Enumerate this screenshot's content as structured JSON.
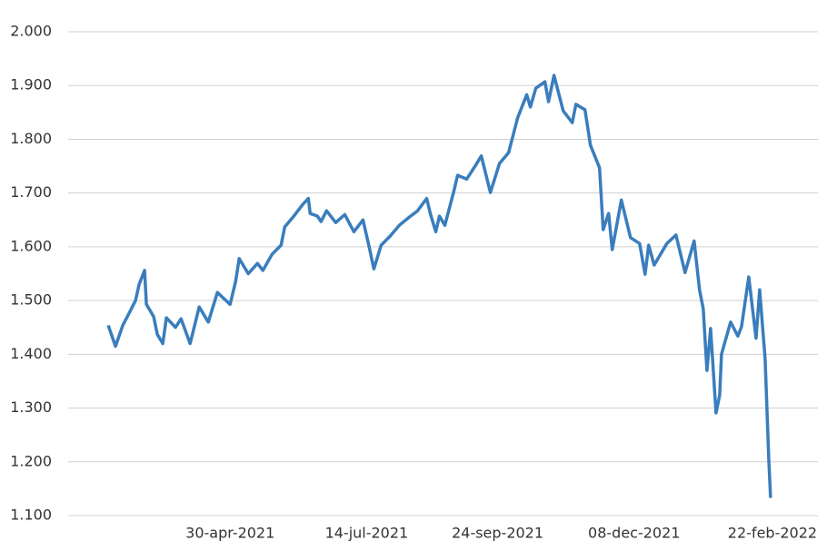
{
  "chart_data": {
    "type": "line",
    "x": [
      "2021-02-22",
      "2021-02-26",
      "2021-03-02",
      "2021-03-06",
      "2021-03-09",
      "2021-03-11",
      "2021-03-14",
      "2021-03-15",
      "2021-03-19",
      "2021-03-21",
      "2021-03-24",
      "2021-03-26",
      "2021-03-31",
      "2021-04-03",
      "2021-04-08",
      "2021-04-13",
      "2021-04-18",
      "2021-04-23",
      "2021-04-30",
      "2021-05-03",
      "2021-05-05",
      "2021-05-10",
      "2021-05-15",
      "2021-05-18",
      "2021-05-23",
      "2021-05-28",
      "2021-05-30",
      "2021-06-04",
      "2021-06-09",
      "2021-06-12",
      "2021-06-13",
      "2021-06-17",
      "2021-06-19",
      "2021-06-22",
      "2021-06-27",
      "2021-07-02",
      "2021-07-07",
      "2021-07-12",
      "2021-07-15",
      "2021-07-18",
      "2021-07-22",
      "2021-07-27",
      "2021-08-01",
      "2021-08-06",
      "2021-08-11",
      "2021-08-16",
      "2021-08-18",
      "2021-08-21",
      "2021-08-23",
      "2021-08-26",
      "2021-08-31",
      "2021-09-02",
      "2021-09-07",
      "2021-09-12",
      "2021-09-15",
      "2021-09-20",
      "2021-09-25",
      "2021-09-30",
      "2021-10-05",
      "2021-10-10",
      "2021-10-12",
      "2021-10-15",
      "2021-10-20",
      "2021-10-22",
      "2021-10-25",
      "2021-10-30",
      "2021-11-04",
      "2021-11-06",
      "2021-11-11",
      "2021-11-14",
      "2021-11-19",
      "2021-11-21",
      "2021-11-24",
      "2021-11-26",
      "2021-12-01",
      "2021-12-06",
      "2021-12-11",
      "2021-12-14",
      "2021-12-16",
      "2021-12-19",
      "2021-12-26",
      "2021-12-31",
      "2022-01-05",
      "2022-01-10",
      "2022-01-13",
      "2022-01-15",
      "2022-01-17",
      "2022-01-19",
      "2022-01-22",
      "2022-01-24",
      "2022-01-25",
      "2022-01-30",
      "2022-02-03",
      "2022-02-05",
      "2022-02-09",
      "2022-02-13",
      "2022-02-15",
      "2022-02-18",
      "2022-02-20",
      "2022-02-21"
    ],
    "series": [
      {
        "color": "#3a7dbd",
        "values": [
          1.454,
          1.415,
          1.454,
          1.48,
          1.5,
          1.53,
          1.556,
          1.493,
          1.47,
          1.437,
          1.42,
          1.468,
          1.45,
          1.466,
          1.42,
          1.488,
          1.46,
          1.515,
          1.493,
          1.535,
          1.578,
          1.55,
          1.569,
          1.556,
          1.586,
          1.603,
          1.637,
          1.657,
          1.679,
          1.69,
          1.662,
          1.657,
          1.647,
          1.667,
          1.645,
          1.66,
          1.628,
          1.65,
          1.606,
          1.559,
          1.603,
          1.62,
          1.64,
          1.654,
          1.667,
          1.69,
          1.662,
          1.628,
          1.657,
          1.64,
          1.704,
          1.733,
          1.726,
          1.752,
          1.769,
          1.701,
          1.755,
          1.775,
          1.84,
          1.883,
          1.86,
          1.895,
          1.907,
          1.87,
          1.919,
          1.853,
          1.831,
          1.865,
          1.855,
          1.789,
          1.747,
          1.632,
          1.662,
          1.595,
          1.687,
          1.617,
          1.606,
          1.549,
          1.603,
          1.566,
          1.606,
          1.622,
          1.552,
          1.611,
          1.519,
          1.485,
          1.37,
          1.448,
          1.291,
          1.324,
          1.4,
          1.46,
          1.434,
          1.451,
          1.544,
          1.43,
          1.52,
          1.392,
          1.206,
          1.133
        ]
      }
    ],
    "xlim": [
      "2021-01-31",
      "2022-03-19"
    ],
    "xticks": [
      {
        "value": "2021-04-30",
        "label": "30-apr-2021"
      },
      {
        "value": "2021-07-14",
        "label": "14-jul-2021"
      },
      {
        "value": "2021-09-24",
        "label": "24-sep-2021"
      },
      {
        "value": "2021-12-08",
        "label": "08-dec-2021"
      },
      {
        "value": "2022-02-22",
        "label": "22-feb-2022"
      }
    ],
    "ylim": [
      1.1,
      2.0
    ],
    "yticks": [
      {
        "value": 1.1,
        "label": "1.100"
      },
      {
        "value": 1.2,
        "label": "1.200"
      },
      {
        "value": 1.3,
        "label": "1.300"
      },
      {
        "value": 1.4,
        "label": "1.400"
      },
      {
        "value": 1.5,
        "label": "1.500"
      },
      {
        "value": 1.6,
        "label": "1.600"
      },
      {
        "value": 1.7,
        "label": "1.700"
      },
      {
        "value": 1.8,
        "label": "1.800"
      },
      {
        "value": 1.9,
        "label": "1.900"
      },
      {
        "value": 2.0,
        "label": "2.000"
      }
    ],
    "grid": true
  }
}
